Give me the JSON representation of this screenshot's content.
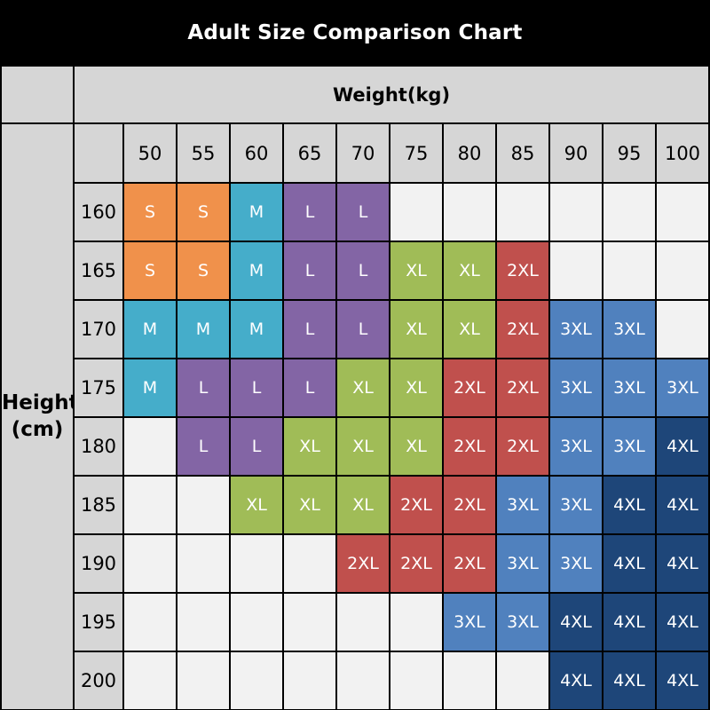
{
  "title": "Adult Size Comparison Chart",
  "weight_axis_label": "Weight(kg)",
  "height_axis_label_line1": "Height",
  "height_axis_label_line2": "(cm)",
  "weights": [
    "50",
    "55",
    "60",
    "65",
    "70",
    "75",
    "80",
    "85",
    "90",
    "95",
    "100"
  ],
  "rows": [
    {
      "height": "160",
      "sizes": [
        "S",
        "S",
        "M",
        "L",
        "L",
        "",
        "",
        "",
        "",
        "",
        ""
      ]
    },
    {
      "height": "165",
      "sizes": [
        "S",
        "S",
        "M",
        "L",
        "L",
        "XL",
        "XL",
        "2XL",
        "",
        "",
        ""
      ]
    },
    {
      "height": "170",
      "sizes": [
        "M",
        "M",
        "M",
        "L",
        "L",
        "XL",
        "XL",
        "2XL",
        "3XL",
        "3XL",
        ""
      ]
    },
    {
      "height": "175",
      "sizes": [
        "M",
        "L",
        "L",
        "L",
        "XL",
        "XL",
        "2XL",
        "2XL",
        "3XL",
        "3XL",
        "3XL"
      ]
    },
    {
      "height": "180",
      "sizes": [
        "",
        "L",
        "L",
        "XL",
        "XL",
        "XL",
        "2XL",
        "2XL",
        "3XL",
        "3XL",
        "4XL"
      ]
    },
    {
      "height": "185",
      "sizes": [
        "",
        "",
        "XL",
        "XL",
        "XL",
        "2XL",
        "2XL",
        "3XL",
        "3XL",
        "4XL",
        "4XL"
      ]
    },
    {
      "height": "190",
      "sizes": [
        "",
        "",
        "",
        "",
        "2XL",
        "2XL",
        "2XL",
        "3XL",
        "3XL",
        "4XL",
        "4XL"
      ]
    },
    {
      "height": "195",
      "sizes": [
        "",
        "",
        "",
        "",
        "",
        "",
        "3XL",
        "3XL",
        "4XL",
        "4XL",
        "4XL"
      ]
    },
    {
      "height": "200",
      "sizes": [
        "",
        "",
        "",
        "",
        "",
        "",
        "",
        "",
        "4XL",
        "4XL",
        "4XL"
      ]
    }
  ],
  "size_colors": {
    "S": "#F0914B",
    "M": "#45ADCA",
    "L": "#8365A5",
    "XL": "#A0BC57",
    "2XL": "#C0504D",
    "3XL": "#5081BE",
    "4XL": "#1E4679"
  },
  "palette": {
    "background": "#000000",
    "title_text": "#FFFFFF",
    "header_cell_bg": "#D6D6D6",
    "header_text": "#000000",
    "empty_cell_bg": "#F2F2F2",
    "grid_border": "#000000",
    "size_cell_text": "#FFFFFF"
  },
  "chart_data": {
    "type": "heatmap",
    "title": "Adult Size Comparison Chart",
    "xlabel": "Weight(kg)",
    "ylabel": "Height (cm)",
    "x": [
      50,
      55,
      60,
      65,
      70,
      75,
      80,
      85,
      90,
      95,
      100
    ],
    "y": [
      160,
      165,
      170,
      175,
      180,
      185,
      190,
      195,
      200
    ],
    "values": [
      [
        "S",
        "S",
        "M",
        "L",
        "L",
        null,
        null,
        null,
        null,
        null,
        null
      ],
      [
        "S",
        "S",
        "M",
        "L",
        "L",
        "XL",
        "XL",
        "2XL",
        null,
        null,
        null
      ],
      [
        "M",
        "M",
        "M",
        "L",
        "L",
        "XL",
        "XL",
        "2XL",
        "3XL",
        "3XL",
        null
      ],
      [
        "M",
        "L",
        "L",
        "L",
        "XL",
        "XL",
        "2XL",
        "2XL",
        "3XL",
        "3XL",
        "3XL"
      ],
      [
        null,
        "L",
        "L",
        "XL",
        "XL",
        "XL",
        "2XL",
        "2XL",
        "3XL",
        "3XL",
        "4XL"
      ],
      [
        null,
        null,
        "XL",
        "XL",
        "XL",
        "2XL",
        "2XL",
        "3XL",
        "3XL",
        "4XL",
        "4XL"
      ],
      [
        null,
        null,
        null,
        null,
        "2XL",
        "2XL",
        "2XL",
        "3XL",
        "3XL",
        "4XL",
        "4XL"
      ],
      [
        null,
        null,
        null,
        null,
        null,
        null,
        "3XL",
        "3XL",
        "4XL",
        "4XL",
        "4XL"
      ],
      [
        null,
        null,
        null,
        null,
        null,
        null,
        null,
        null,
        "4XL",
        "4XL",
        "4XL"
      ]
    ],
    "legend": {
      "S": "#F0914B",
      "M": "#45ADCA",
      "L": "#8365A5",
      "XL": "#A0BC57",
      "2XL": "#C0504D",
      "3XL": "#5081BE",
      "4XL": "#1E4679"
    },
    "grid": true,
    "legend_position": "none"
  }
}
